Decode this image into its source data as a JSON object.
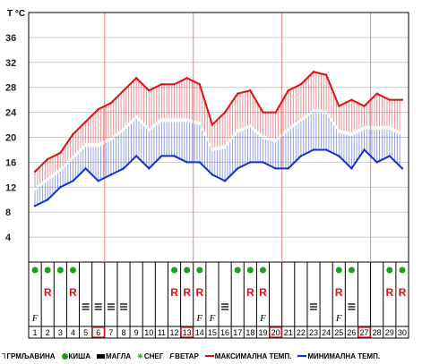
{
  "chart_data": {
    "type": "area",
    "unit_label": "T °C",
    "y_ticks": [
      4,
      8,
      12,
      16,
      20,
      24,
      28,
      32,
      36
    ],
    "ylim": [
      0,
      40
    ],
    "grid": true,
    "x": [
      1,
      2,
      3,
      4,
      5,
      6,
      7,
      8,
      9,
      10,
      11,
      12,
      13,
      14,
      15,
      16,
      17,
      18,
      19,
      20,
      21,
      22,
      23,
      24,
      25,
      26,
      27,
      28,
      29,
      30
    ],
    "x_tick_labels": [
      "1",
      "2",
      "3",
      "4",
      "5",
      "6",
      "7",
      "8",
      "9",
      "10",
      "11",
      "12",
      "13",
      "14",
      "15",
      "16",
      "17",
      "18",
      "19",
      "20",
      "21",
      "22",
      "23",
      "24",
      "25",
      "26",
      "27",
      "28",
      "29",
      "30"
    ],
    "highlighted_days": [
      6,
      13,
      20,
      27
    ],
    "series": [
      {
        "name": "МАКСИМАЛНА ТЕМП.",
        "color": "#e01010",
        "values": [
          14.5,
          16.5,
          17.5,
          20.5,
          22.5,
          24.5,
          25.5,
          27.5,
          29.5,
          27.5,
          28.5,
          28.5,
          29.5,
          28.5,
          22,
          24,
          27,
          27.5,
          24,
          24,
          27.5,
          28.5,
          30.5,
          30,
          25,
          26,
          25,
          27,
          26,
          26
        ]
      },
      {
        "name": "МИНИМАЛНА ТЕМП.",
        "color": "#1030d0",
        "values": [
          9,
          10,
          12,
          13,
          15,
          13,
          14,
          15,
          17,
          15,
          17,
          17,
          16,
          16,
          14,
          13,
          15,
          16,
          16,
          15,
          15,
          17,
          18,
          18,
          17,
          15,
          18,
          16,
          17,
          15
        ]
      }
    ],
    "weather_rows": {
      "rain": [
        1,
        2,
        3,
        4,
        12,
        13,
        14,
        17,
        18,
        19,
        25,
        26,
        29,
        30
      ],
      "thunderstorm": [
        2,
        4,
        12,
        13,
        14,
        18,
        19,
        25,
        29,
        30
      ],
      "fog": [
        5,
        6,
        7,
        8,
        16,
        23,
        26
      ],
      "wind": [
        1,
        14,
        15,
        19,
        25
      ]
    }
  },
  "legend": {
    "items": [
      {
        "symbol": "thunderstorm-icon",
        "label": "ГРМЉАВИНА"
      },
      {
        "symbol": "rain-dot-icon",
        "label": "КИША"
      },
      {
        "symbol": "fog-bar-icon",
        "label": "МАГЛА"
      },
      {
        "symbol": "snow-icon",
        "label": "СНЕГ"
      },
      {
        "symbol": "wind-icon",
        "label": "ВЕТАР"
      },
      {
        "symbol": "max-temp-line-icon",
        "label": "МАКСИМАЛНА ТЕМП."
      },
      {
        "symbol": "min-temp-line-icon",
        "label": "МИНИМАЛНА ТЕМП."
      }
    ]
  },
  "colors": {
    "max": "#e01010",
    "min": "#1030d0",
    "rain": "#1aa01a",
    "snow": "#1aa01a",
    "highlight": "#e01010"
  }
}
